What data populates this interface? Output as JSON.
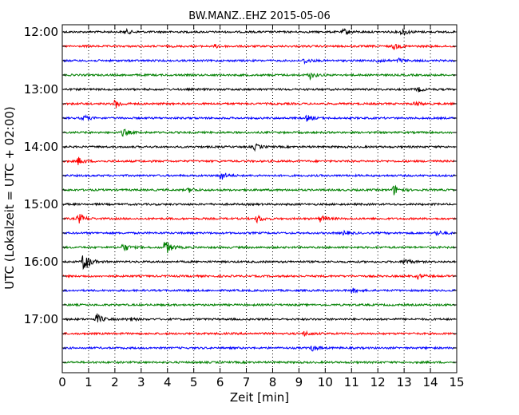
{
  "chart_data": {
    "type": "line",
    "title": "BW.MANZ..EHZ 2015-05-06",
    "xlabel": "Zeit  [min]",
    "ylabel": "UTC (Lokalzeit = UTC + 02:00)",
    "xlim": [
      0,
      15
    ],
    "x_ticks": [
      "0",
      "1",
      "2",
      "3",
      "4",
      "5",
      "6",
      "7",
      "8",
      "9",
      "10",
      "11",
      "12",
      "13",
      "14",
      "15"
    ],
    "hour_labels": [
      "12:00",
      "13:00",
      "14:00",
      "15:00",
      "16:00",
      "17:00"
    ],
    "row_interval_min": 15,
    "grid": "vertical dotted",
    "colors": [
      "#000000",
      "#ff0000",
      "#0000ff",
      "#008000"
    ],
    "rows": [
      {
        "time": "12:00",
        "color": "#000000",
        "events": [
          {
            "x": 2.4,
            "a": 3
          },
          {
            "x": 10.7,
            "a": 4
          },
          {
            "x": 12.9,
            "a": 5
          }
        ]
      },
      {
        "time": "12:15",
        "color": "#ff0000",
        "events": [
          {
            "x": 5.8,
            "a": 2
          },
          {
            "x": 12.6,
            "a": 4
          }
        ]
      },
      {
        "time": "12:30",
        "color": "#0000ff",
        "events": [
          {
            "x": 9.2,
            "a": 4
          },
          {
            "x": 12.0,
            "a": 3
          },
          {
            "x": 12.8,
            "a": 3
          }
        ]
      },
      {
        "time": "12:45",
        "color": "#008000",
        "events": [
          {
            "x": 9.4,
            "a": 5
          }
        ]
      },
      {
        "time": "13:00",
        "color": "#000000",
        "events": [
          {
            "x": 13.5,
            "a": 3
          }
        ]
      },
      {
        "time": "13:15",
        "color": "#ff0000",
        "events": [
          {
            "x": 2.0,
            "a": 6
          },
          {
            "x": 13.4,
            "a": 3
          }
        ]
      },
      {
        "time": "13:30",
        "color": "#0000ff",
        "events": [
          {
            "x": 0.8,
            "a": 4
          },
          {
            "x": 9.3,
            "a": 4
          }
        ]
      },
      {
        "time": "13:45",
        "color": "#008000",
        "events": [
          {
            "x": 2.3,
            "a": 5
          }
        ]
      },
      {
        "time": "14:00",
        "color": "#000000",
        "events": [
          {
            "x": 7.3,
            "a": 4
          }
        ]
      },
      {
        "time": "14:15",
        "color": "#ff0000",
        "events": [
          {
            "x": 0.6,
            "a": 5
          }
        ]
      },
      {
        "time": "14:30",
        "color": "#0000ff",
        "events": [
          {
            "x": 6.0,
            "a": 7
          }
        ]
      },
      {
        "time": "14:45",
        "color": "#008000",
        "events": [
          {
            "x": 4.8,
            "a": 3
          },
          {
            "x": 12.6,
            "a": 7
          }
        ]
      },
      {
        "time": "15:00",
        "color": "#000000",
        "events": []
      },
      {
        "time": "15:15",
        "color": "#ff0000",
        "events": [
          {
            "x": 0.6,
            "a": 7
          },
          {
            "x": 7.4,
            "a": 5
          },
          {
            "x": 9.8,
            "a": 4
          }
        ]
      },
      {
        "time": "15:30",
        "color": "#0000ff",
        "events": [
          {
            "x": 10.7,
            "a": 3
          },
          {
            "x": 14.2,
            "a": 4
          }
        ]
      },
      {
        "time": "15:45",
        "color": "#008000",
        "events": [
          {
            "x": 2.3,
            "a": 6
          },
          {
            "x": 3.9,
            "a": 11
          }
        ]
      },
      {
        "time": "16:00",
        "color": "#000000",
        "events": [
          {
            "x": 0.8,
            "a": 16
          },
          {
            "x": 13.0,
            "a": 5
          }
        ]
      },
      {
        "time": "16:15",
        "color": "#ff0000",
        "events": [
          {
            "x": 13.5,
            "a": 3
          }
        ]
      },
      {
        "time": "16:30",
        "color": "#0000ff",
        "events": [
          {
            "x": 11.0,
            "a": 3
          }
        ]
      },
      {
        "time": "16:45",
        "color": "#008000",
        "events": []
      },
      {
        "time": "17:00",
        "color": "#000000",
        "events": [
          {
            "x": 1.3,
            "a": 7
          },
          {
            "x": 2.5,
            "a": 3
          }
        ]
      },
      {
        "time": "17:15",
        "color": "#ff0000",
        "events": [
          {
            "x": 9.2,
            "a": 3
          }
        ]
      },
      {
        "time": "17:30",
        "color": "#0000ff",
        "events": [
          {
            "x": 9.5,
            "a": 4
          }
        ]
      },
      {
        "time": "17:45",
        "color": "#008000",
        "events": []
      }
    ]
  }
}
